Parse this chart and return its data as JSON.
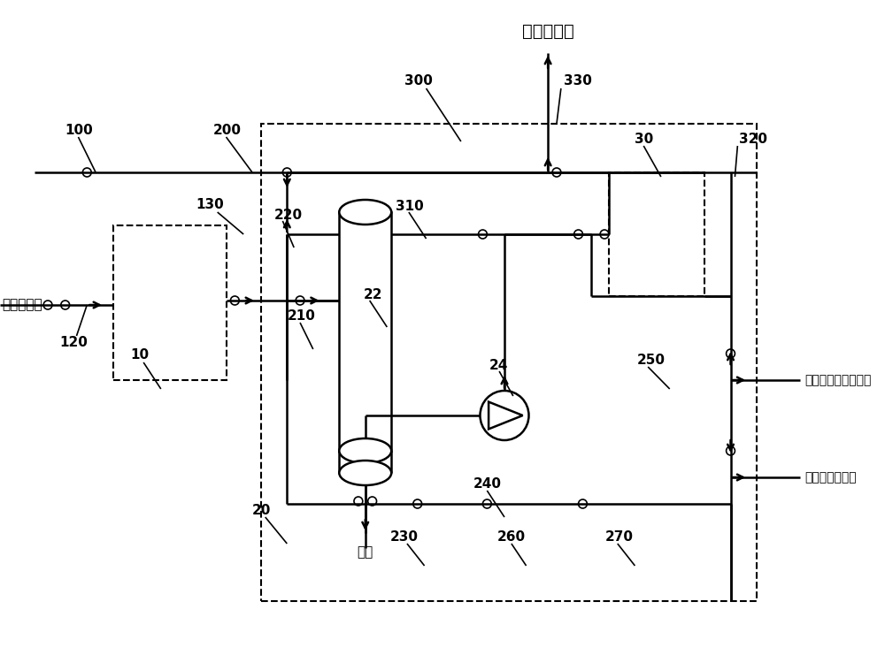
{
  "bg_color": "#ffffff",
  "lc": "#000000",
  "title": "去水洗部分",
  "text_catalytic": "催化液化气",
  "text_slag": "碱渣",
  "text_regen_from": "自碱液再生装置再生",
  "text_regen_to": "至碱液再生装置"
}
